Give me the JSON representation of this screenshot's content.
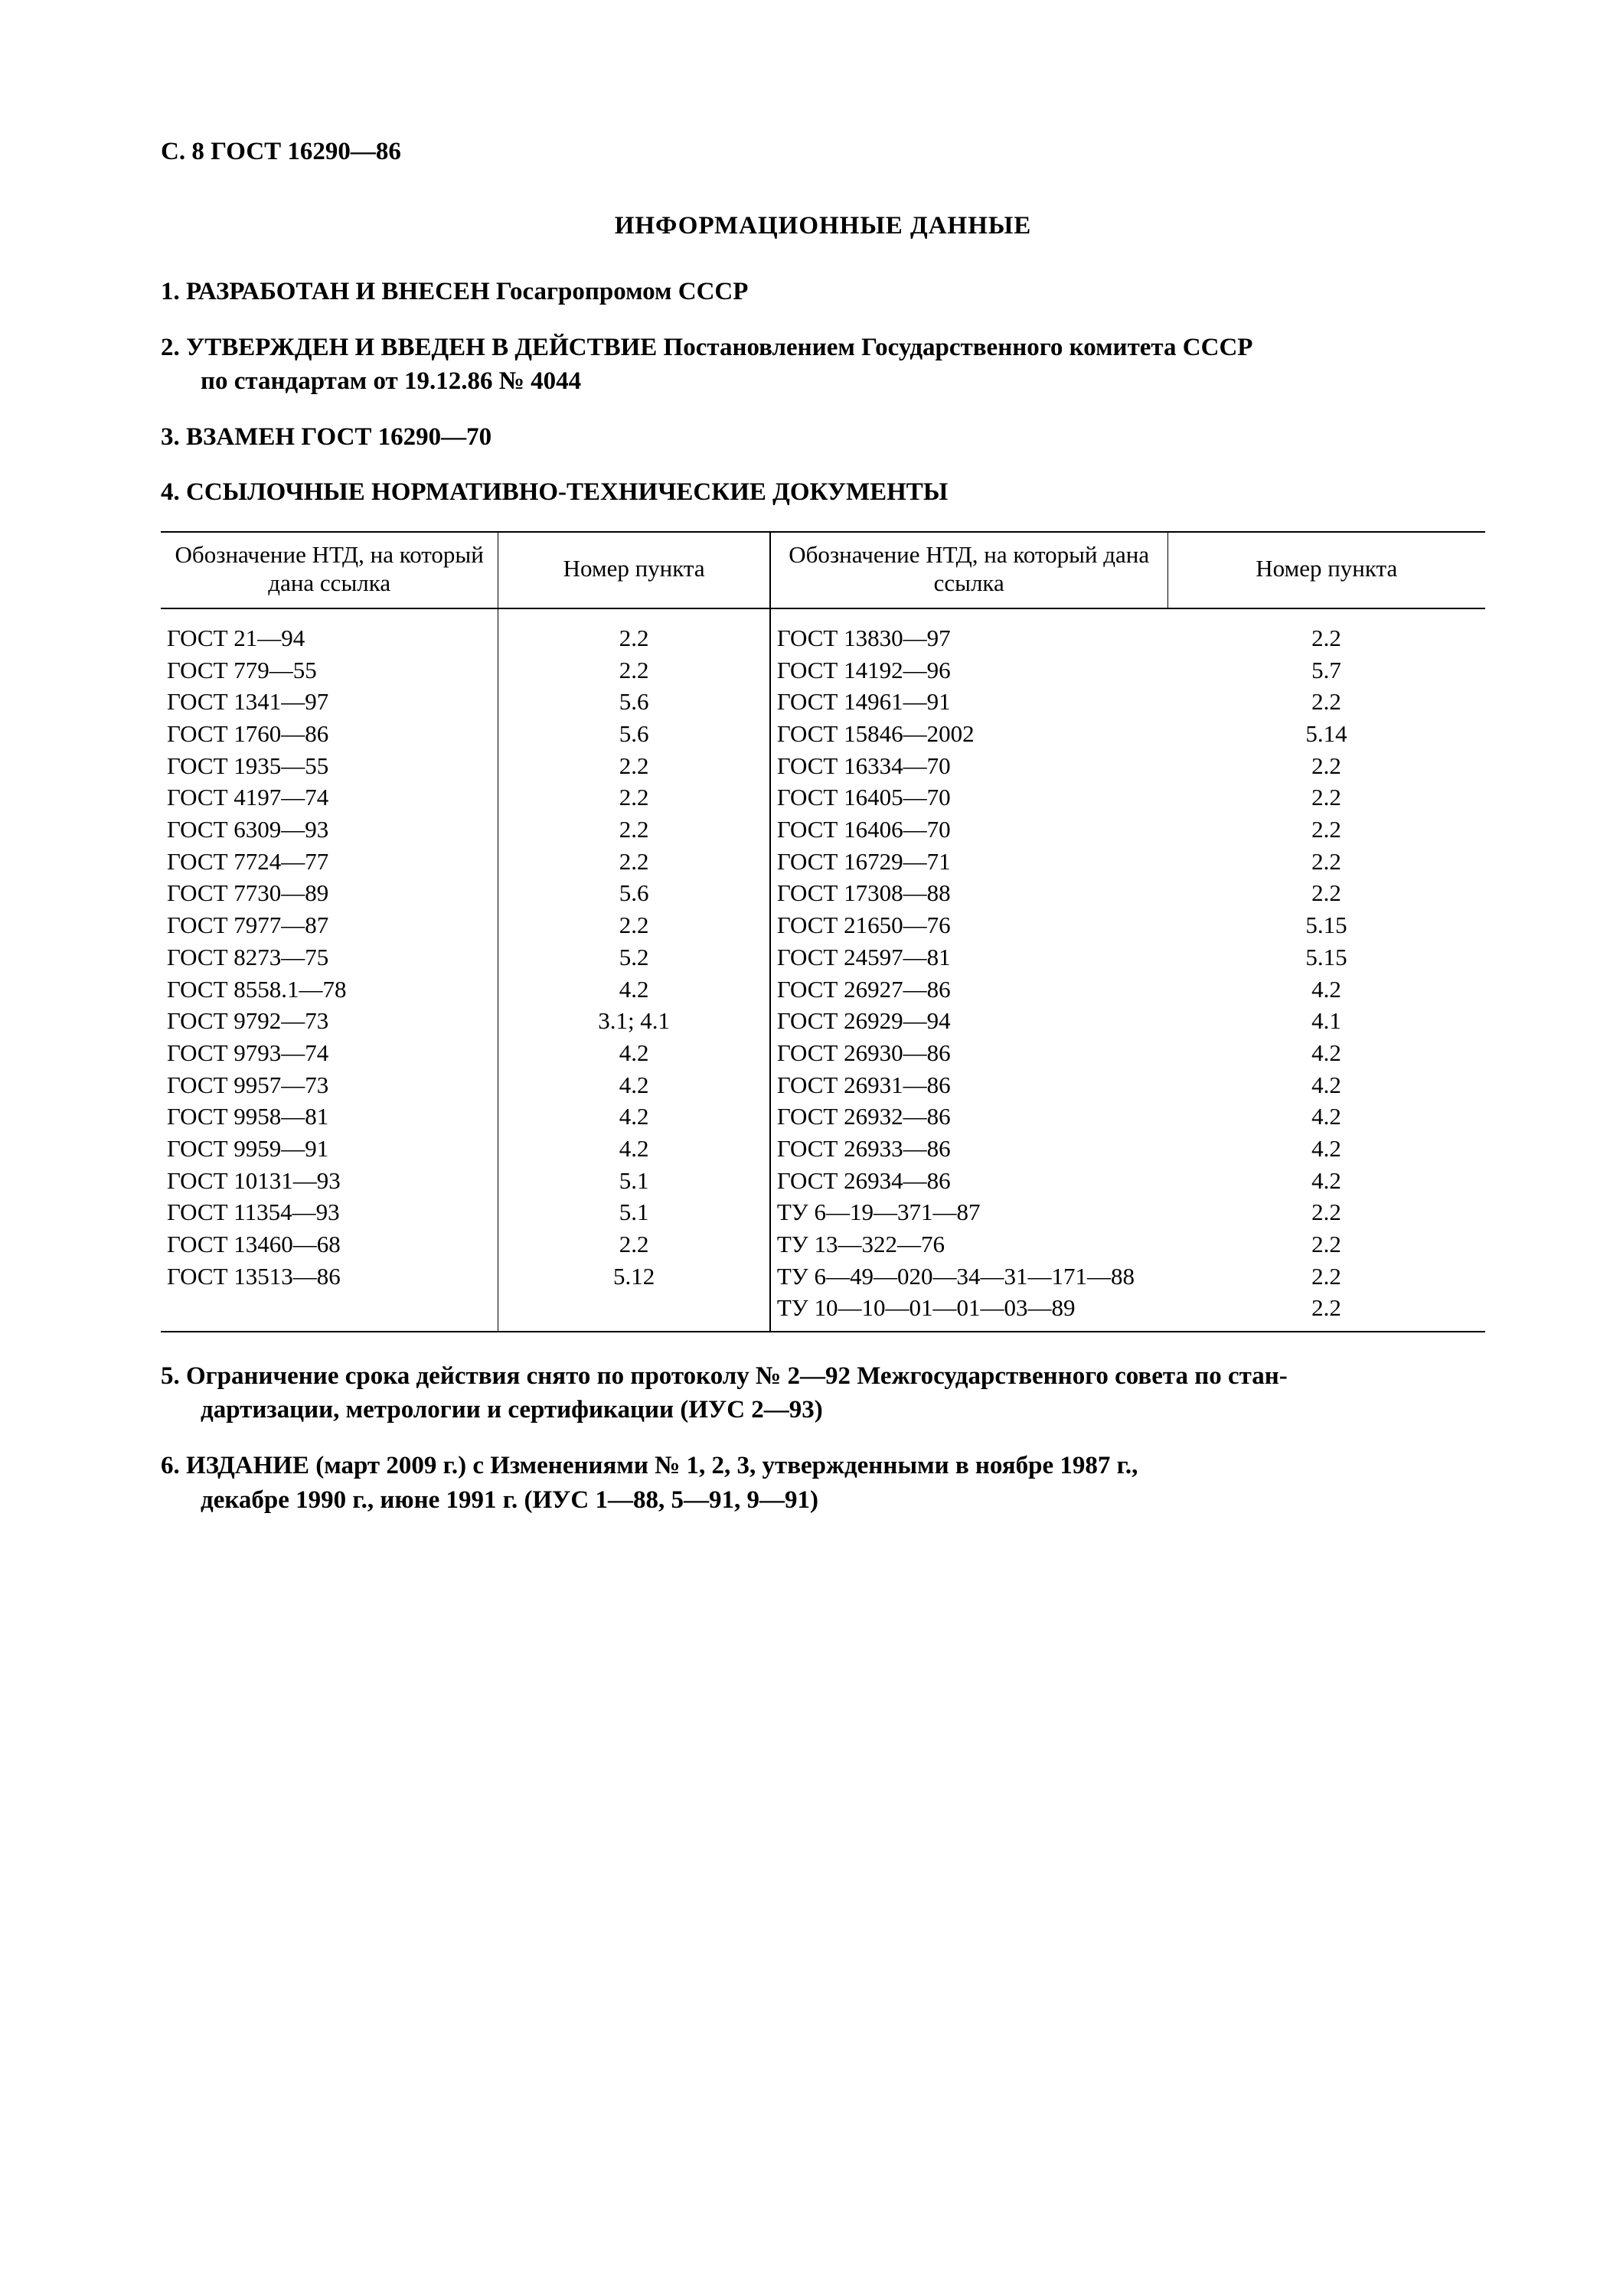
{
  "header": "С. 8 ГОСТ 16290—86",
  "title": "ИНФОРМАЦИОННЫЕ  ДАННЫЕ",
  "items_top": [
    {
      "num": "1.",
      "bold": "РАЗРАБОТАН  И  ВНЕСЕН  Госагропромом СССР",
      "rest": ""
    },
    {
      "num": "2.",
      "bold": "УТВЕРЖДЕН  И  ВВЕДЕН  В  ДЕЙСТВИЕ  Постановлением  Государственного  комитета  СССР",
      "rest": "по стандартам от 19.12.86 № 4044"
    },
    {
      "num": "3.",
      "bold": "ВЗАМЕН ГОСТ 16290—70",
      "rest": ""
    },
    {
      "num": "4.",
      "bold": "ССЫЛОЧНЫЕ НОРМАТИВНО-ТЕХНИЧЕСКИЕ ДОКУМЕНТЫ",
      "rest": ""
    }
  ],
  "table": {
    "header_left_a": "Обозначение НТД, на который дана ссылка",
    "header_left_b": "Номер пункта",
    "header_right_a": "Обозначение НТД, на который дана ссылка",
    "header_right_b": "Номер пункта",
    "rows_left": [
      [
        "ГОСТ 21—94",
        "2.2"
      ],
      [
        "ГОСТ 779—55",
        "2.2"
      ],
      [
        "ГОСТ 1341—97",
        "5.6"
      ],
      [
        "ГОСТ 1760—86",
        "5.6"
      ],
      [
        "ГОСТ 1935—55",
        "2.2"
      ],
      [
        "ГОСТ 4197—74",
        "2.2"
      ],
      [
        "ГОСТ 6309—93",
        "2.2"
      ],
      [
        "ГОСТ 7724—77",
        "2.2"
      ],
      [
        "ГОСТ 7730—89",
        "5.6"
      ],
      [
        "ГОСТ 7977—87",
        "2.2"
      ],
      [
        "ГОСТ 8273—75",
        "5.2"
      ],
      [
        "ГОСТ 8558.1—78",
        "4.2"
      ],
      [
        "ГОСТ 9792—73",
        "3.1; 4.1"
      ],
      [
        "ГОСТ 9793—74",
        "4.2"
      ],
      [
        "ГОСТ 9957—73",
        "4.2"
      ],
      [
        "ГОСТ 9958—81",
        "4.2"
      ],
      [
        "ГОСТ 9959—91",
        "4.2"
      ],
      [
        "ГОСТ 10131—93",
        "5.1"
      ],
      [
        "ГОСТ 11354—93",
        "5.1"
      ],
      [
        "ГОСТ 13460—68",
        "2.2"
      ],
      [
        "ГОСТ 13513—86",
        "5.12"
      ]
    ],
    "rows_right": [
      [
        "ГОСТ 13830—97",
        "2.2"
      ],
      [
        "ГОСТ 14192—96",
        "5.7"
      ],
      [
        "ГОСТ 14961—91",
        "2.2"
      ],
      [
        "ГОСТ 15846—2002",
        "5.14"
      ],
      [
        "ГОСТ 16334—70",
        "2.2"
      ],
      [
        "ГОСТ 16405—70",
        "2.2"
      ],
      [
        "ГОСТ 16406—70",
        "2.2"
      ],
      [
        "ГОСТ 16729—71",
        "2.2"
      ],
      [
        "ГОСТ 17308—88",
        "2.2"
      ],
      [
        "ГОСТ 21650—76",
        "5.15"
      ],
      [
        "ГОСТ 24597—81",
        "5.15"
      ],
      [
        "ГОСТ 26927—86",
        "4.2"
      ],
      [
        "ГОСТ 26929—94",
        "4.1"
      ],
      [
        "ГОСТ 26930—86",
        "4.2"
      ],
      [
        "ГОСТ 26931—86",
        "4.2"
      ],
      [
        "ГОСТ 26932—86",
        "4.2"
      ],
      [
        "ГОСТ 26933—86",
        "4.2"
      ],
      [
        "ГОСТ 26934—86",
        "4.2"
      ],
      [
        "ТУ 6—19—371—87",
        "2.2"
      ],
      [
        "ТУ 13—322—76",
        "2.2"
      ],
      [
        "ТУ 6—49—020—34—31—171—88",
        "2.2"
      ],
      [
        "ТУ 10—10—01—01—03—89",
        "2.2"
      ]
    ]
  },
  "items_bottom": [
    {
      "num": "5.",
      "line1": "Ограничение  срока  действия   снято  по  протоколу  № 2—92 Межгосударственного совета по стан-",
      "line2": "дартизации,  метрологии и сертификации (ИУС 2—93)"
    },
    {
      "num": "6.",
      "line1": "ИЗДАНИЕ (март 2009 г.)   с   Изменениями   №  1,  2,  3,   утвержденными   в   ноябре   1987  г.,",
      "line2": "декабре 1990 г., июне  1991 г. (ИУС 1—88, 5—91, 9—91)"
    }
  ]
}
